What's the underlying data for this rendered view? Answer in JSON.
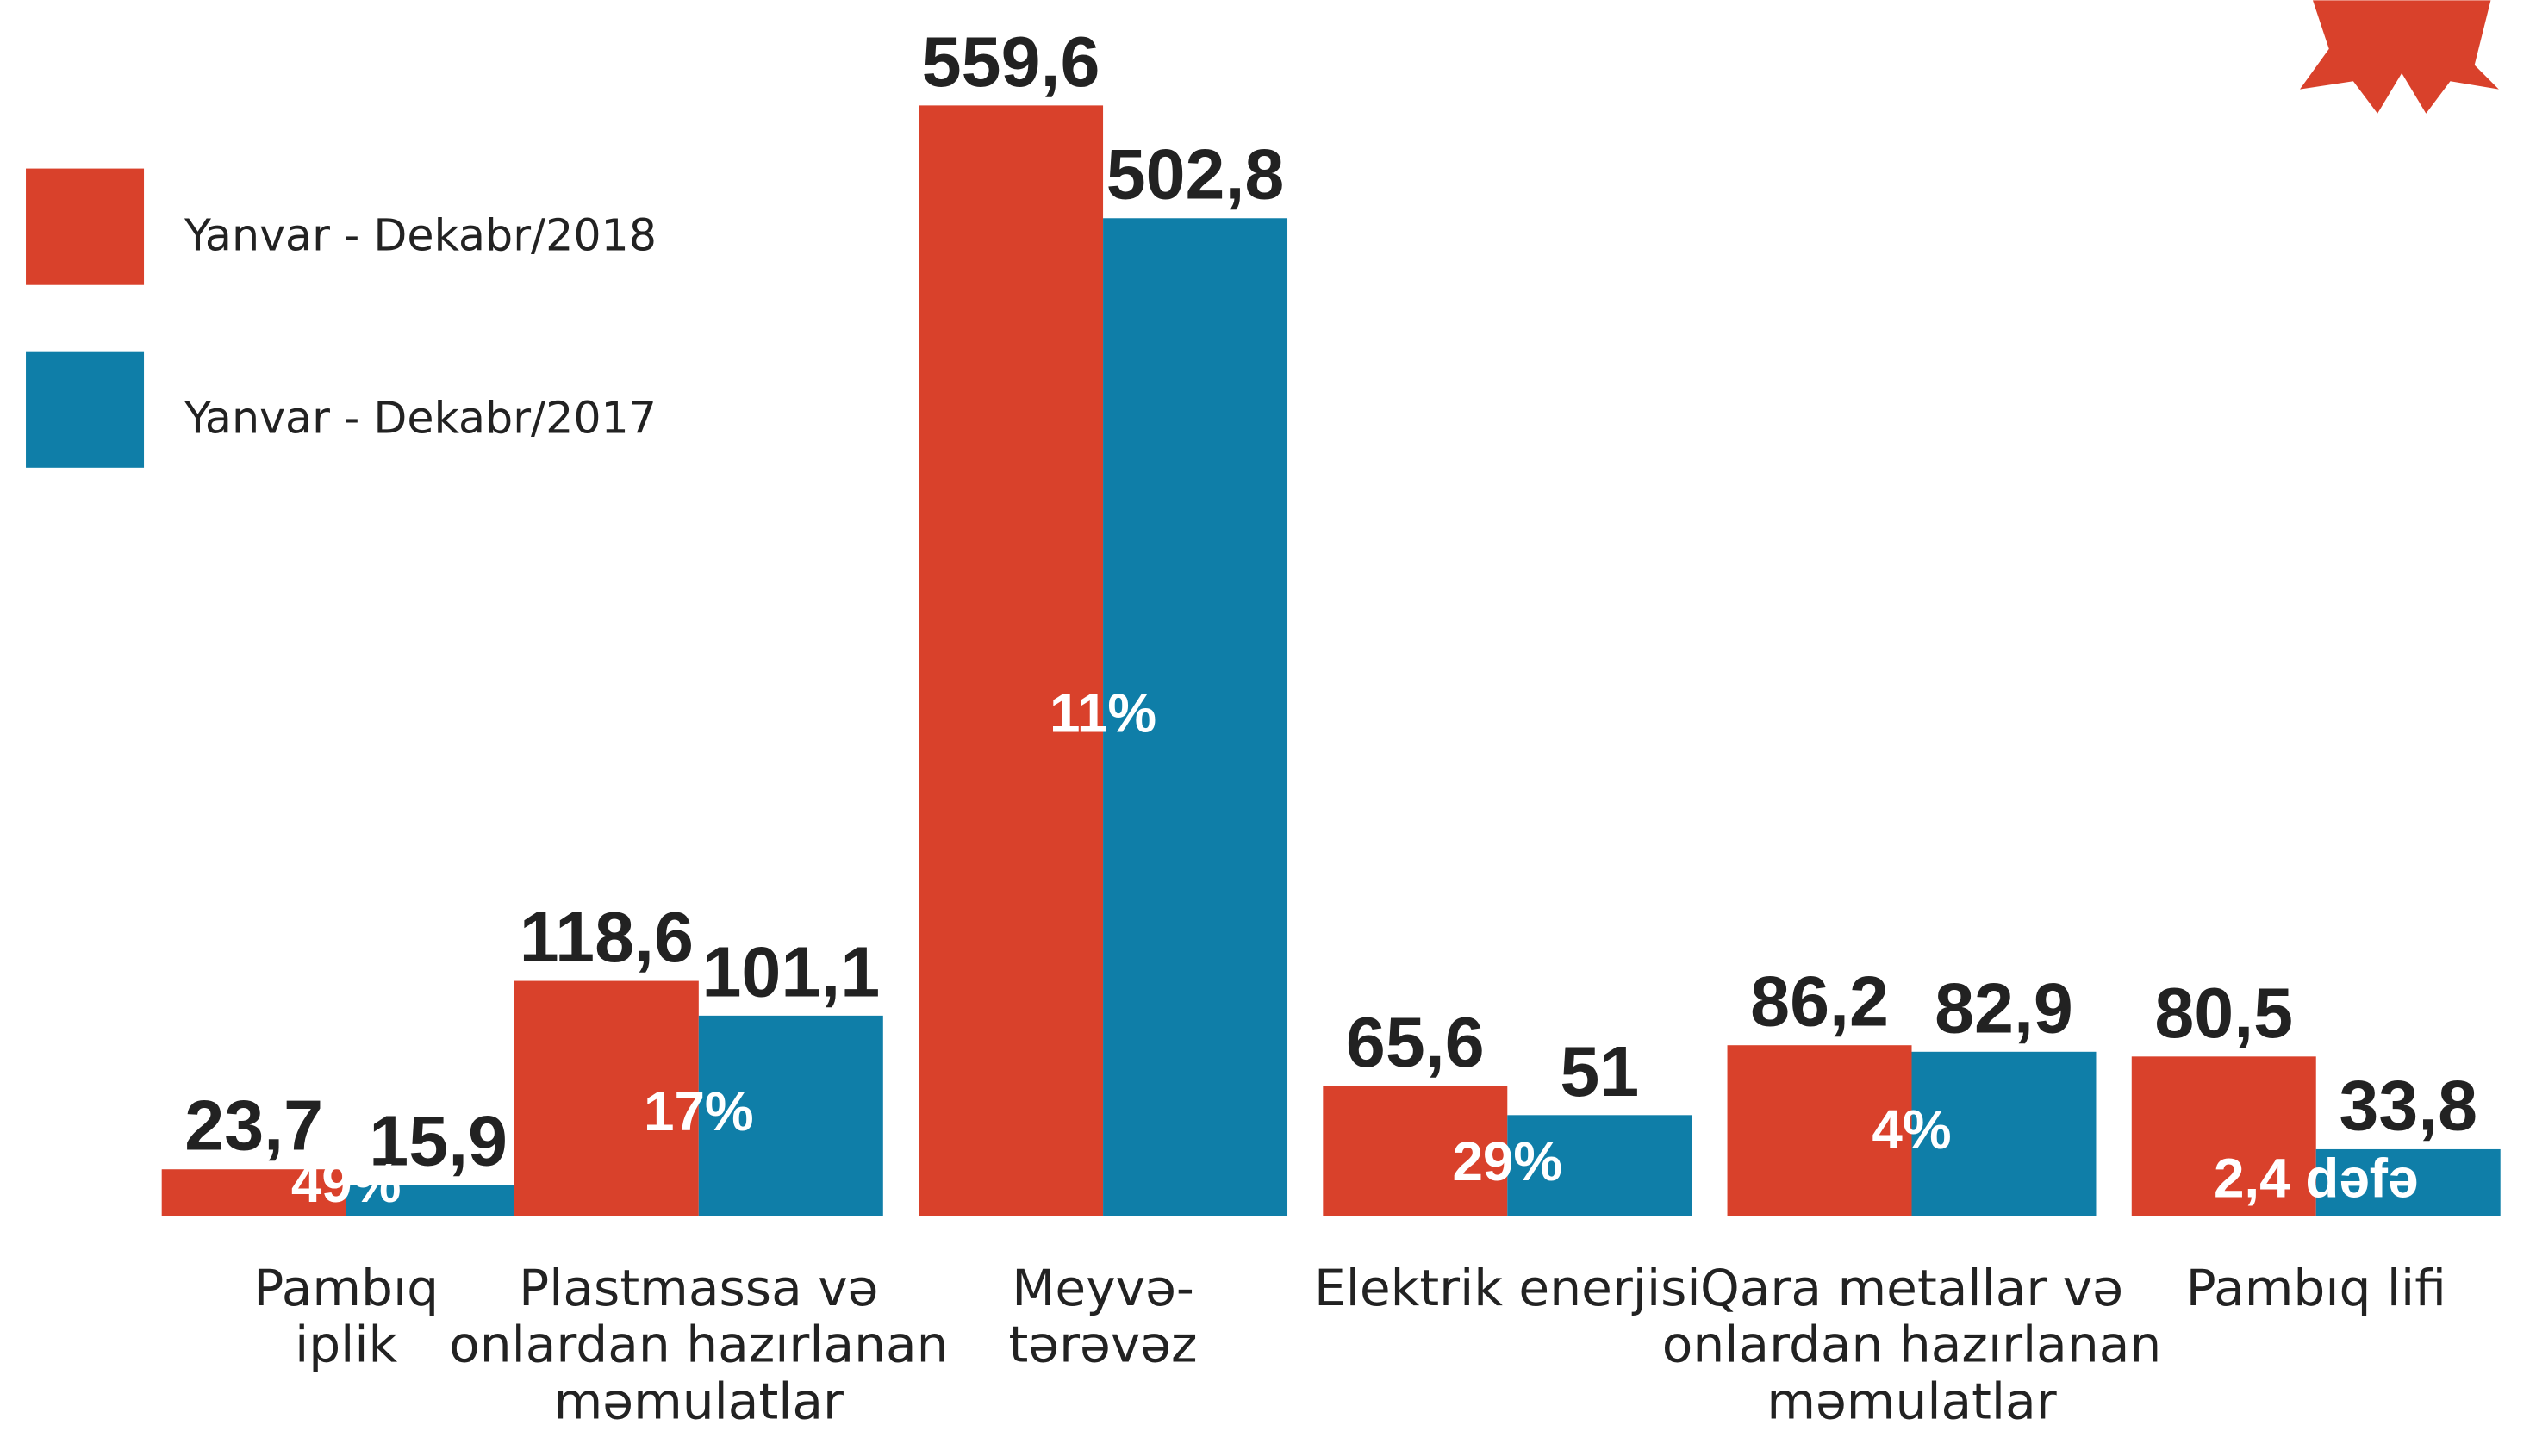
{
  "chart_data": {
    "type": "bar",
    "categories": [
      "Pambıq\niplik",
      "Plastmassa və\nonlardan hazırlanan\nməmulatlar",
      "Meyvə-\ntərəvəz",
      "Elektrik enerjisi",
      "Qara metallar və\nonlardan hazırlanan\nməmulatlar",
      "Pambıq lifi"
    ],
    "series": [
      {
        "name": "Yanvar - Dekabr/2018",
        "color": "#d9412b",
        "values": [
          23.7,
          118.6,
          559.6,
          65.6,
          86.2,
          80.5
        ],
        "value_labels": [
          "23,7",
          "118,6",
          "559,6",
          "65,6",
          "86,2",
          "80,5"
        ]
      },
      {
        "name": "Yanvar - Dekabr/2017",
        "color": "#0f7ea8",
        "values": [
          15.9,
          101.1,
          502.8,
          51,
          82.9,
          33.8
        ],
        "value_labels": [
          "15,9",
          "101,1",
          "502,8",
          "51",
          "82,9",
          "33,8"
        ]
      }
    ],
    "change_labels": [
      "49%",
      "17%",
      "11%",
      "29%",
      "4%",
      "2,4 dəfə"
    ]
  }
}
